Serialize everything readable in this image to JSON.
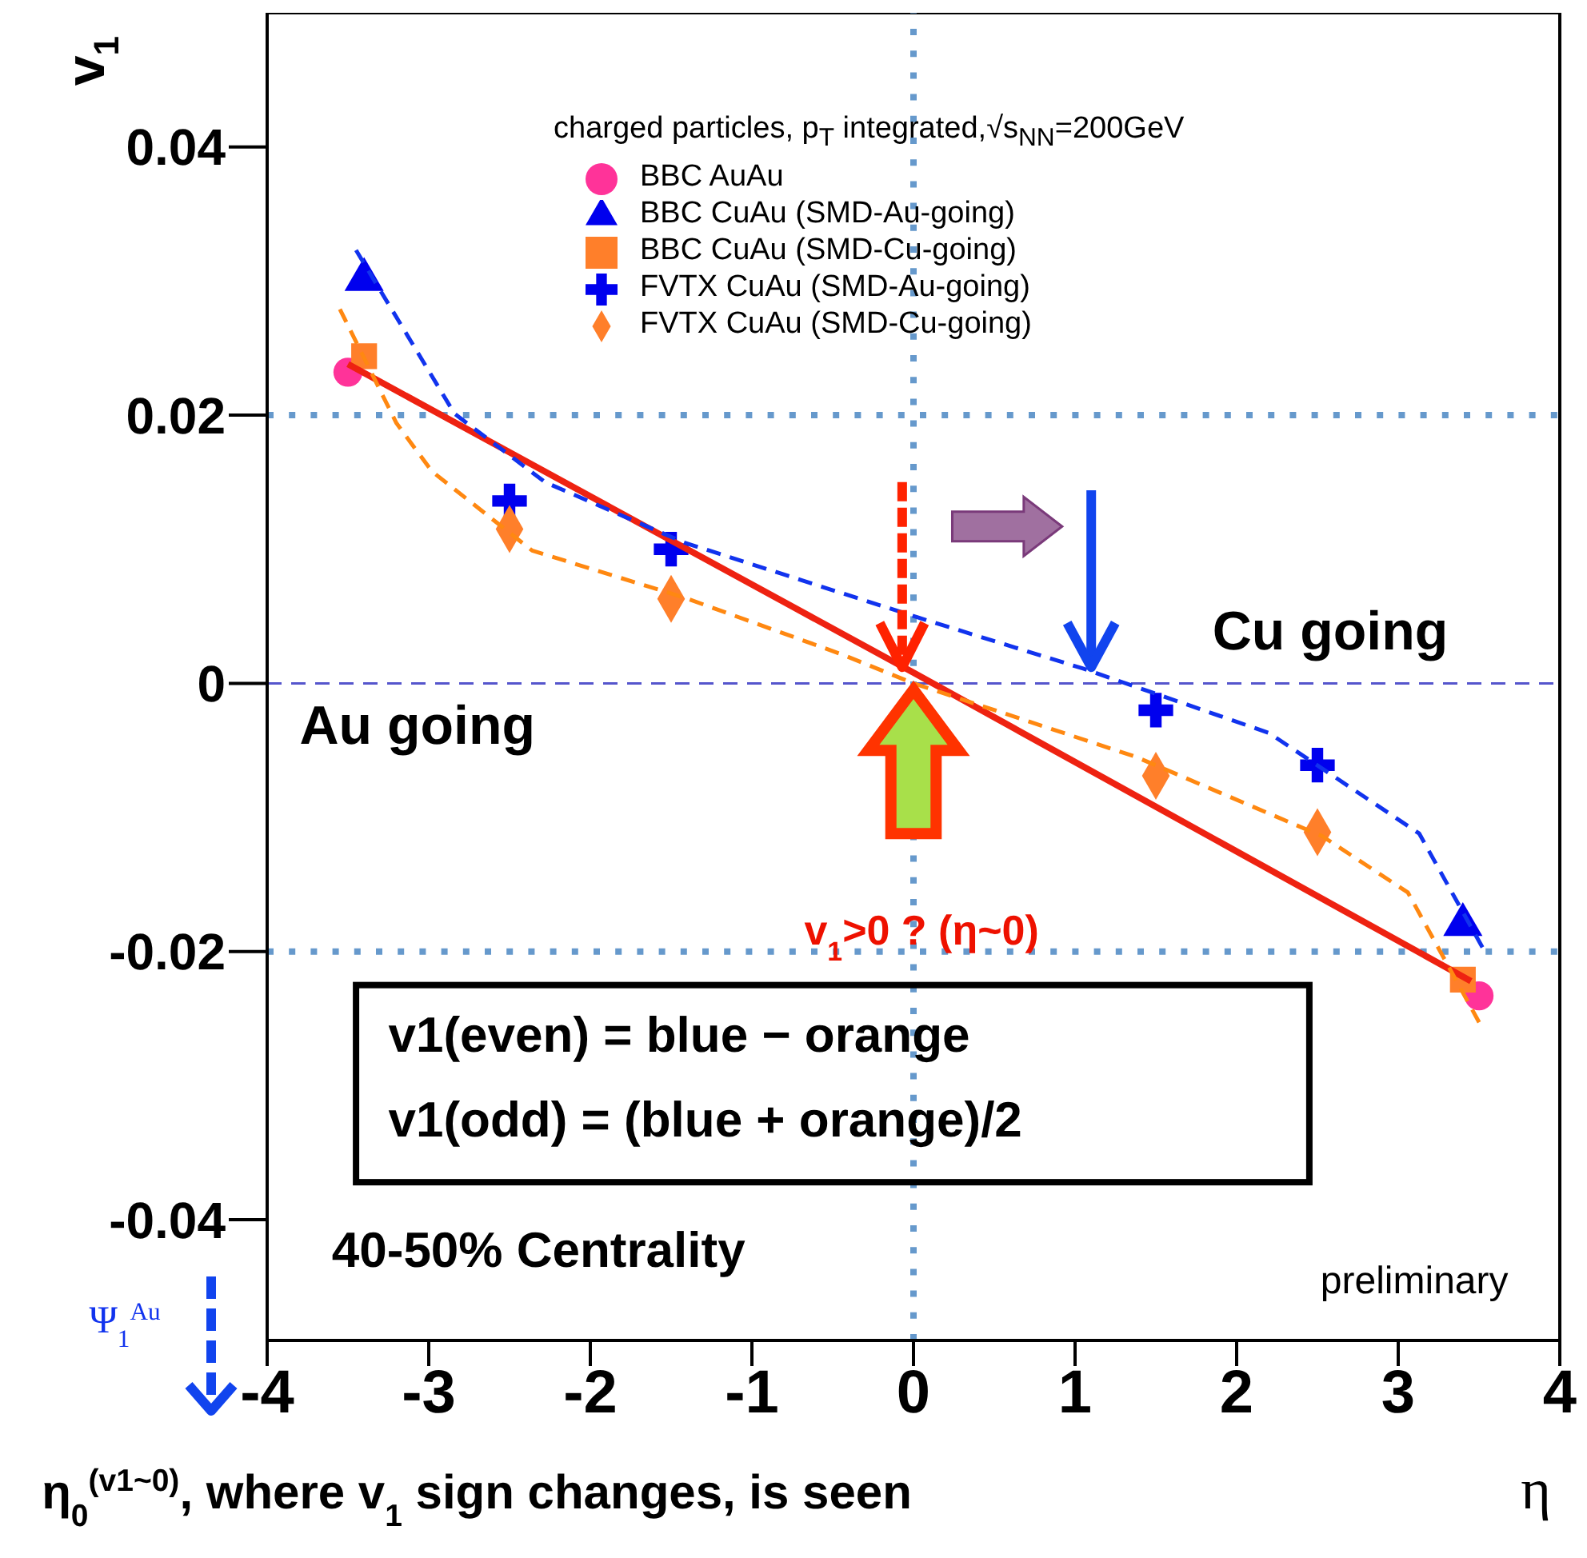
{
  "chart_data": {
    "type": "scatter",
    "ylabel": "v$_{1}$",
    "xlabel": "η",
    "legend_title": "charged particles, p$_{T}$ integrated,√s$_{NN}$=200GeV",
    "legend": "top",
    "xlim": [
      -4,
      4
    ],
    "xticks": [
      -4,
      -3,
      -2,
      -1,
      0,
      1,
      2,
      3,
      4
    ],
    "ylim": [
      -0.049,
      0.05
    ],
    "yticks": [
      -0.04,
      -0.02,
      0,
      0.02,
      0.04
    ],
    "series": [
      {
        "name": "BBC  AuAu",
        "color": "#ff3399",
        "marker": "circle",
        "x": [
          -3.5,
          3.5
        ],
        "values": [
          0.0232,
          -0.0233
        ]
      },
      {
        "name": "BBC  CuAu (SMD-Au-going)",
        "color": "#0000ee",
        "marker": "triangle",
        "x": [
          -3.4,
          3.4
        ],
        "values": [
          0.0301,
          -0.018
        ]
      },
      {
        "name": "BBC  CuAu (SMD-Cu-going)",
        "color": "#ff7f2a",
        "marker": "square",
        "x": [
          -3.4,
          3.4
        ],
        "values": [
          0.0244,
          -0.0221
        ]
      },
      {
        "name": "FVTX CuAu (SMD-Au-going)",
        "color": "#0000ee",
        "marker": "cross",
        "x": [
          -2.5,
          -1.5,
          1.5,
          2.5
        ],
        "values": [
          0.0136,
          0.01,
          -0.002,
          -0.0061
        ]
      },
      {
        "name": "FVTX CuAu (SMD-Cu-going)",
        "color": "#ff7f2a",
        "marker": "diamond",
        "x": [
          -2.5,
          -1.5,
          1.5,
          2.5
        ],
        "values": [
          0.0115,
          0.0063,
          -0.0069,
          -0.0111
        ]
      },
      {
        "type": "line",
        "color": "#ee2211",
        "line_style": "solid",
        "x": [
          -3.5,
          0,
          3.45
        ],
        "values": [
          0.0238,
          0.0008,
          -0.0222
        ]
      },
      {
        "type": "line",
        "color": "#1133ee",
        "line_style": "dashed",
        "x": [
          -3.45,
          -2.84,
          -2.28,
          -1.42,
          0.03,
          1.05,
          2.2,
          3.13,
          3.54
        ],
        "values": [
          0.0323,
          0.0201,
          0.015,
          0.0105,
          0.0049,
          0.0011,
          -0.0037,
          -0.0112,
          -0.0201
        ]
      },
      {
        "type": "line",
        "color": "#ff8811",
        "line_style": "dashed",
        "x": [
          -3.55,
          -3.2,
          -2.98,
          -2.36,
          -1.42,
          -0.43,
          0,
          1.38,
          2.53,
          3.06,
          3.52
        ],
        "values": [
          0.0279,
          0.0194,
          0.0158,
          0.0099,
          0.0064,
          0.0021,
          0,
          -0.0055,
          -0.0114,
          -0.0156,
          -0.0257
        ]
      }
    ],
    "ref_lines": [
      {
        "axis": "y",
        "value": 0.02,
        "color": "#6699cc",
        "line_style": "dotted"
      },
      {
        "axis": "y",
        "value": -0.02,
        "color": "#6699cc",
        "line_style": "dotted"
      },
      {
        "axis": "y",
        "value": 0,
        "color": "#5555cc",
        "line_style": "dashed"
      },
      {
        "axis": "x",
        "value": 0,
        "color": "#6699cc",
        "line_style": "dotted"
      }
    ],
    "annotations": [
      "Au going",
      "Cu going",
      "v$_{1}$>0 ? (η~0)",
      "v1(even) = blue − orange",
      "v1(odd)  = (blue + orange)/2",
      "40-50% Centrality",
      "preliminary",
      "Ψ$_{1}$$^{Au}$",
      "η$_{0}$$^{(v1~0)}$, where v$_{1}$ sign changes, is seen"
    ]
  }
}
